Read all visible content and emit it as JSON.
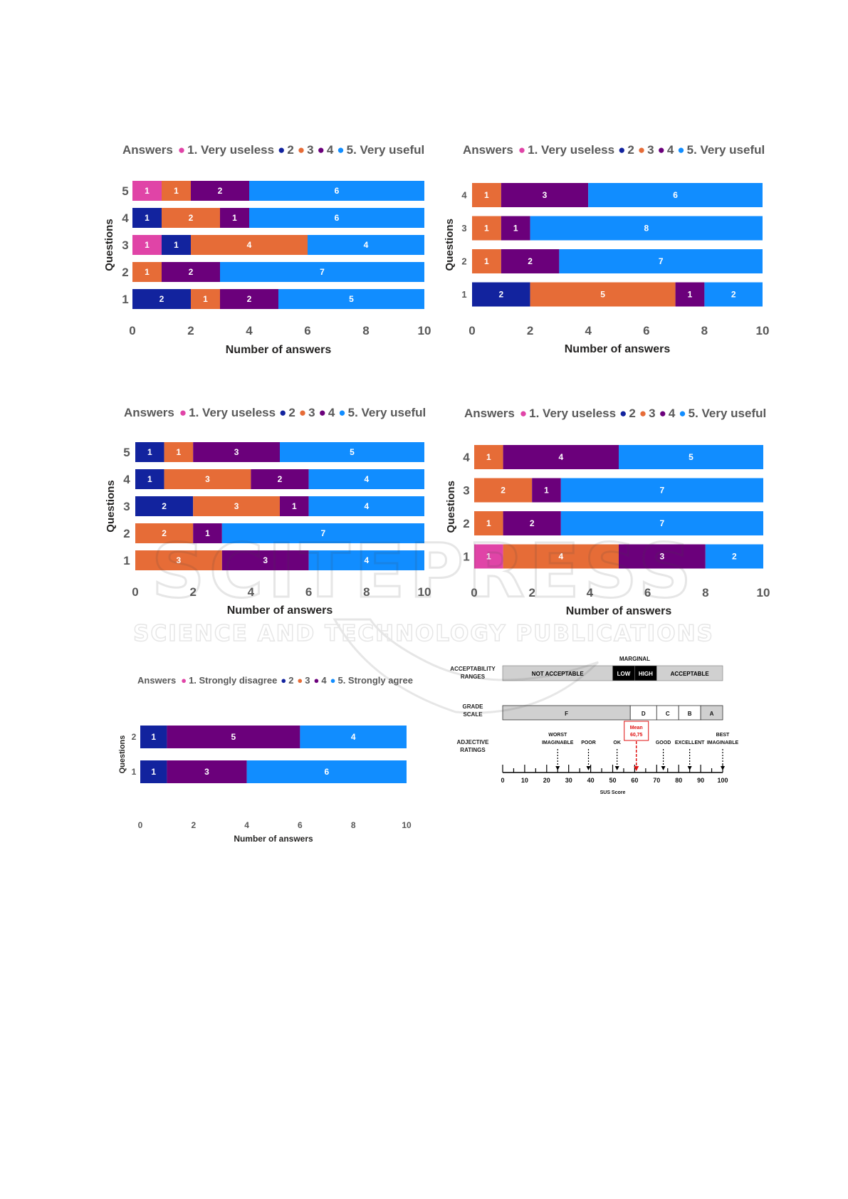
{
  "colors": {
    "c1": "#e044a7",
    "c2": "#12239e",
    "c3": "#e66c37",
    "c4": "#6b007b",
    "c5": "#118dff"
  },
  "chart_data": [
    {
      "type": "bar",
      "orientation": "horizontal-stacked",
      "legend": {
        "title": "Answers",
        "items": [
          "1. Very useless",
          "2",
          "3",
          "4",
          "5. Very useful"
        ],
        "position": "top"
      },
      "categories": [
        "5",
        "4",
        "3",
        "2",
        "1"
      ],
      "series": [
        {
          "name": "1. Very useless",
          "values": [
            1,
            0,
            1,
            0,
            0
          ]
        },
        {
          "name": "2",
          "values": [
            0,
            1,
            1,
            0,
            2
          ]
        },
        {
          "name": "3",
          "values": [
            1,
            2,
            4,
            1,
            1
          ]
        },
        {
          "name": "4",
          "values": [
            2,
            1,
            0,
            2,
            2
          ]
        },
        {
          "name": "5. Very useful",
          "values": [
            6,
            6,
            4,
            7,
            5
          ]
        }
      ],
      "xlabel": "Number of answers",
      "ylabel": "Questions",
      "xticks": [
        "0",
        "2",
        "4",
        "6",
        "8",
        "10"
      ],
      "xlim": [
        0,
        10
      ]
    },
    {
      "type": "bar",
      "orientation": "horizontal-stacked",
      "legend": {
        "title": "Answers",
        "items": [
          "1. Very useless",
          "2",
          "3",
          "4",
          "5. Very useful"
        ],
        "position": "top"
      },
      "categories": [
        "4",
        "3",
        "2",
        "1"
      ],
      "series": [
        {
          "name": "1. Very useless",
          "values": [
            0,
            0,
            0,
            0
          ]
        },
        {
          "name": "2",
          "values": [
            0,
            0,
            0,
            2
          ]
        },
        {
          "name": "3",
          "values": [
            1,
            1,
            1,
            5
          ]
        },
        {
          "name": "4",
          "values": [
            3,
            1,
            2,
            1
          ]
        },
        {
          "name": "5. Very useful",
          "values": [
            6,
            8,
            7,
            2
          ]
        }
      ],
      "xlabel": "Number of answers",
      "ylabel": "Questions",
      "xticks": [
        "0",
        "2",
        "4",
        "6",
        "8",
        "10"
      ],
      "xlim": [
        0,
        10
      ]
    },
    {
      "type": "bar",
      "orientation": "horizontal-stacked",
      "legend": {
        "title": "Answers",
        "items": [
          "1. Very useless",
          "2",
          "3",
          "4",
          "5. Very useful"
        ],
        "position": "top"
      },
      "categories": [
        "5",
        "4",
        "3",
        "2",
        "1"
      ],
      "series": [
        {
          "name": "1. Very useless",
          "values": [
            0,
            0,
            0,
            0,
            0
          ]
        },
        {
          "name": "2",
          "values": [
            1,
            1,
            2,
            0,
            0
          ]
        },
        {
          "name": "3",
          "values": [
            1,
            3,
            3,
            2,
            3
          ]
        },
        {
          "name": "4",
          "values": [
            3,
            2,
            1,
            1,
            3
          ]
        },
        {
          "name": "5. Very useful",
          "values": [
            5,
            4,
            4,
            7,
            4
          ]
        }
      ],
      "xlabel": "Number of answers",
      "ylabel": "Questions",
      "xticks": [
        "0",
        "2",
        "4",
        "6",
        "8",
        "10"
      ],
      "xlim": [
        0,
        10
      ]
    },
    {
      "type": "bar",
      "orientation": "horizontal-stacked",
      "legend": {
        "title": "Answers",
        "items": [
          "1. Very useless",
          "2",
          "3",
          "4",
          "5. Very useful"
        ],
        "position": "top"
      },
      "categories": [
        "4",
        "3",
        "2",
        "1"
      ],
      "series": [
        {
          "name": "1. Very useless",
          "values": [
            0,
            0,
            0,
            1
          ]
        },
        {
          "name": "2",
          "values": [
            0,
            0,
            0,
            0
          ]
        },
        {
          "name": "3",
          "values": [
            1,
            2,
            1,
            4
          ]
        },
        {
          "name": "4",
          "values": [
            4,
            1,
            2,
            3
          ]
        },
        {
          "name": "5. Very useful",
          "values": [
            5,
            7,
            7,
            2
          ]
        }
      ],
      "xlabel": "Number of answers",
      "ylabel": "Questions",
      "xticks": [
        "0",
        "2",
        "4",
        "6",
        "8",
        "10"
      ],
      "xlim": [
        0,
        10
      ]
    },
    {
      "type": "bar",
      "orientation": "horizontal-stacked",
      "legend": {
        "title": "Answers",
        "items": [
          "1. Strongly disagree",
          "2",
          "3",
          "4",
          "5. Strongly agree"
        ],
        "position": "top"
      },
      "categories": [
        "2",
        "1"
      ],
      "series": [
        {
          "name": "1. Strongly disagree",
          "values": [
            0,
            0
          ]
        },
        {
          "name": "2",
          "values": [
            1,
            1
          ]
        },
        {
          "name": "3",
          "values": [
            0,
            0
          ]
        },
        {
          "name": "4",
          "values": [
            5,
            3
          ]
        },
        {
          "name": "5. Strongly agree",
          "values": [
            4,
            6
          ]
        }
      ],
      "xlabel": "Number of answers",
      "ylabel": "Questions",
      "xticks": [
        "0",
        "2",
        "4",
        "6",
        "8",
        "10"
      ],
      "xlim": [
        0,
        10
      ]
    }
  ],
  "sus_scale": {
    "row_labels": {
      "acceptability": [
        "ACCEPTABILITY",
        "RANGES"
      ],
      "grade": [
        "GRADE",
        "SCALE"
      ],
      "adjective": [
        "ADJECTIVE",
        "RATINGS"
      ]
    },
    "marginal_label": "MARGINAL",
    "acceptability_segments": [
      {
        "label": "NOT ACCEPTABLE",
        "from": 0,
        "to": 50,
        "fill": "#d0d0d0",
        "text": "#000000"
      },
      {
        "label": "LOW",
        "from": 50,
        "to": 60,
        "fill": "#000000",
        "text": "#ffffff"
      },
      {
        "label": "HIGH",
        "from": 60,
        "to": 70,
        "fill": "#000000",
        "text": "#ffffff"
      },
      {
        "label": "ACCEPTABLE",
        "from": 70,
        "to": 100,
        "fill": "#d0d0d0",
        "text": "#000000"
      }
    ],
    "grades": [
      {
        "label": "F",
        "from": 0,
        "to": 58,
        "fill": "#d0d0d0"
      },
      {
        "label": "D",
        "from": 58,
        "to": 70,
        "fill": "#ffffff"
      },
      {
        "label": "C",
        "from": 70,
        "to": 80,
        "fill": "#ffffff"
      },
      {
        "label": "B",
        "from": 80,
        "to": 90,
        "fill": "#ffffff"
      },
      {
        "label": "A",
        "from": 90,
        "to": 100,
        "fill": "#d0d0d0"
      }
    ],
    "adjectives": [
      {
        "lines": [
          "WORST",
          "IMAGINABLE"
        ],
        "score": 25
      },
      {
        "lines": [
          "POOR"
        ],
        "score": 39
      },
      {
        "lines": [
          "OK"
        ],
        "score": 52
      },
      {
        "lines": [
          "GOOD"
        ],
        "score": 73
      },
      {
        "lines": [
          "EXCELLENT"
        ],
        "score": 85
      },
      {
        "lines": [
          "BEST",
          "IMAGINABLE"
        ],
        "score": 100
      }
    ],
    "mean": {
      "lines": [
        "Mean",
        "60,75"
      ],
      "score": 60.75,
      "color": "#e01010"
    },
    "axis_ticks": [
      "0",
      "10",
      "20",
      "30",
      "40",
      "50",
      "60",
      "70",
      "80",
      "90",
      "100"
    ],
    "axis_title": "SUS Score"
  },
  "watermark": {
    "main": "SCITEPRESS",
    "sub": "SCIENCE AND TECHNOLOGY PUBLICATIONS"
  }
}
